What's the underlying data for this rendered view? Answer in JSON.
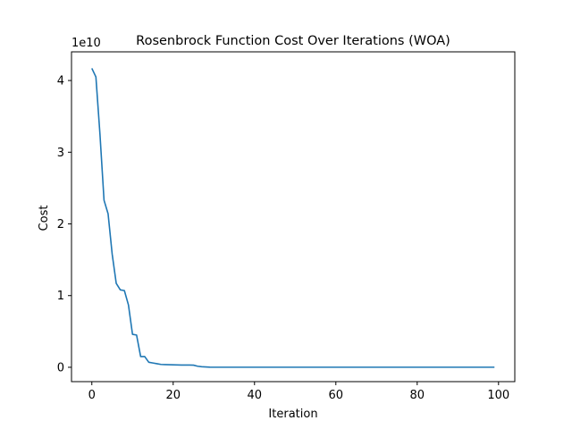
{
  "chart_data": {
    "type": "line",
    "title": "Rosenbrock Function Cost Over Iterations (WOA)",
    "xlabel": "Iteration",
    "ylabel": "Cost",
    "y_offset_label": "1e10",
    "y_scale_factor": 10000000000,
    "xlim": [
      -5,
      104
    ],
    "ylim": [
      -0.2,
      4.4
    ],
    "x_ticks": [
      0,
      20,
      40,
      60,
      80,
      100
    ],
    "y_ticks": [
      0,
      1,
      2,
      3,
      4
    ],
    "grid": false,
    "line_color": "#1f77b4",
    "series": [
      {
        "x": [
          0,
          1,
          2,
          3,
          4,
          5,
          6,
          7,
          8,
          9,
          10,
          11,
          12,
          13,
          14,
          15,
          16,
          17,
          18,
          19,
          20,
          21,
          22,
          23,
          24,
          25,
          26,
          27,
          28,
          29,
          30,
          31,
          32,
          33,
          34,
          35,
          36,
          37,
          38,
          39,
          40,
          41,
          42,
          43,
          44,
          45,
          46,
          47,
          48,
          49,
          50,
          51,
          52,
          53,
          54,
          55,
          56,
          57,
          58,
          59,
          60,
          61,
          62,
          63,
          64,
          65,
          66,
          67,
          68,
          69,
          70,
          71,
          72,
          73,
          74,
          75,
          76,
          77,
          78,
          79,
          80,
          81,
          82,
          83,
          84,
          85,
          86,
          87,
          88,
          89,
          90,
          91,
          92,
          93,
          94,
          95,
          96,
          97,
          98,
          99
        ],
        "y": [
          4.17,
          4.05,
          3.25,
          2.33,
          2.14,
          1.58,
          1.17,
          1.08,
          1.07,
          0.87,
          0.46,
          0.45,
          0.15,
          0.15,
          0.07,
          0.06,
          0.05,
          0.04,
          0.038,
          0.036,
          0.034,
          0.033,
          0.032,
          0.031,
          0.031,
          0.03,
          0.015,
          0.008,
          0.005,
          0.002,
          0.001,
          0.001,
          0.001,
          0.001,
          0.001,
          0.001,
          0.001,
          0.001,
          0.001,
          0.001,
          0.001,
          0.001,
          0.001,
          0.001,
          0.001,
          0.001,
          0.001,
          0.001,
          0.001,
          0.001,
          0.001,
          0.001,
          0.001,
          0.001,
          0.001,
          0.001,
          0.001,
          0.001,
          0.001,
          0.001,
          0.001,
          0.001,
          0.001,
          0.001,
          0.001,
          0.001,
          0.001,
          0.001,
          0.001,
          0.001,
          0.001,
          0.001,
          0.001,
          0.001,
          0.001,
          0.001,
          0.001,
          0.001,
          0.001,
          0.001,
          0.001,
          0.001,
          0.001,
          0.001,
          0.001,
          0.001,
          0.001,
          0.001,
          0.001,
          0.001,
          0.001,
          0.001,
          0.001,
          0.001,
          0.001,
          0.001,
          0.001,
          0.001,
          0.001,
          0.001
        ]
      }
    ]
  }
}
